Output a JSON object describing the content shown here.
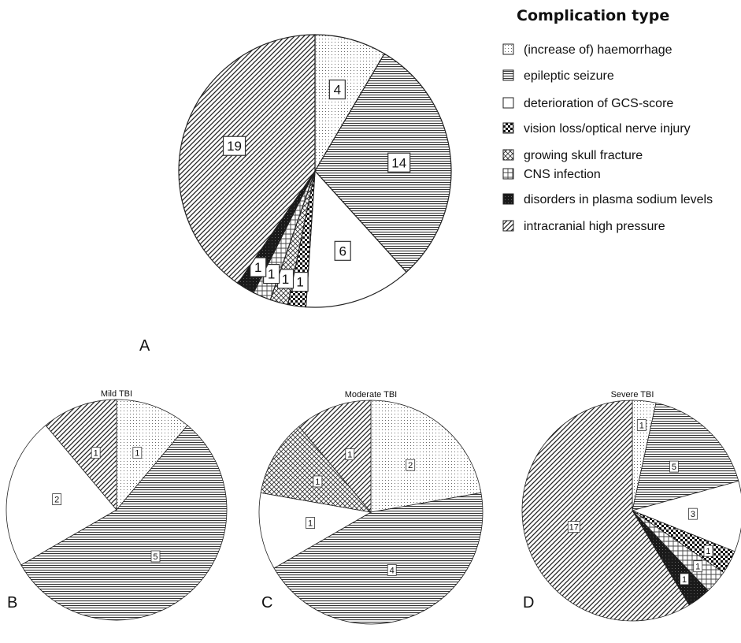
{
  "legend": {
    "title": "Complication type",
    "items": [
      {
        "label": "(increase of) haemorrhage",
        "pattern": "dots"
      },
      {
        "label": "epileptic seizure",
        "pattern": "hlines"
      },
      {
        "label": "deterioration of GCS-score",
        "pattern": "blank"
      },
      {
        "label": "vision loss/optical nerve injury",
        "pattern": "checker"
      },
      {
        "label": "growing skull fracture",
        "pattern": "crosshatch"
      },
      {
        "label": "CNS infection",
        "pattern": "plusgrid"
      },
      {
        "label": "disorders in plasma sodium levels",
        "pattern": "dark"
      },
      {
        "label": "intracranial high pressure",
        "pattern": "diag"
      }
    ]
  },
  "chart_data": [
    {
      "type": "pie",
      "panel": "A",
      "title": "",
      "slices": [
        {
          "category": "(increase of) haemorrhage",
          "value": 4
        },
        {
          "category": "epileptic seizure",
          "value": 14
        },
        {
          "category": "deterioration of GCS-score",
          "value": 6
        },
        {
          "category": "vision loss/optical nerve injury",
          "value": 1
        },
        {
          "category": "growing skull fracture",
          "value": 1
        },
        {
          "category": "CNS infection",
          "value": 1
        },
        {
          "category": "disorders in plasma sodium levels",
          "value": 1
        },
        {
          "category": "intracranial high pressure",
          "value": 19
        }
      ]
    },
    {
      "type": "pie",
      "panel": "B",
      "title": "Mild TBI",
      "slices": [
        {
          "category": "(increase of) haemorrhage",
          "value": 1
        },
        {
          "category": "epileptic seizure",
          "value": 5
        },
        {
          "category": "deterioration of GCS-score",
          "value": 2
        },
        {
          "category": "intracranial high pressure",
          "value": 1
        }
      ]
    },
    {
      "type": "pie",
      "panel": "C",
      "title": "Moderate TBI",
      "slices": [
        {
          "category": "(increase of) haemorrhage",
          "value": 2
        },
        {
          "category": "epileptic seizure",
          "value": 4
        },
        {
          "category": "deterioration of GCS-score",
          "value": 1
        },
        {
          "category": "growing skull fracture",
          "value": 1
        },
        {
          "category": "intracranial high pressure",
          "value": 1
        }
      ]
    },
    {
      "type": "pie",
      "panel": "D",
      "title": "Severe TBI",
      "slices": [
        {
          "category": "(increase of) haemorrhage",
          "value": 1
        },
        {
          "category": "epileptic seizure",
          "value": 5
        },
        {
          "category": "deterioration of GCS-score",
          "value": 3
        },
        {
          "category": "vision loss/optical nerve injury",
          "value": 1
        },
        {
          "category": "CNS infection",
          "value": 1
        },
        {
          "category": "disorders in plasma sodium levels",
          "value": 1
        },
        {
          "category": "intracranial high pressure",
          "value": 17
        }
      ]
    }
  ]
}
